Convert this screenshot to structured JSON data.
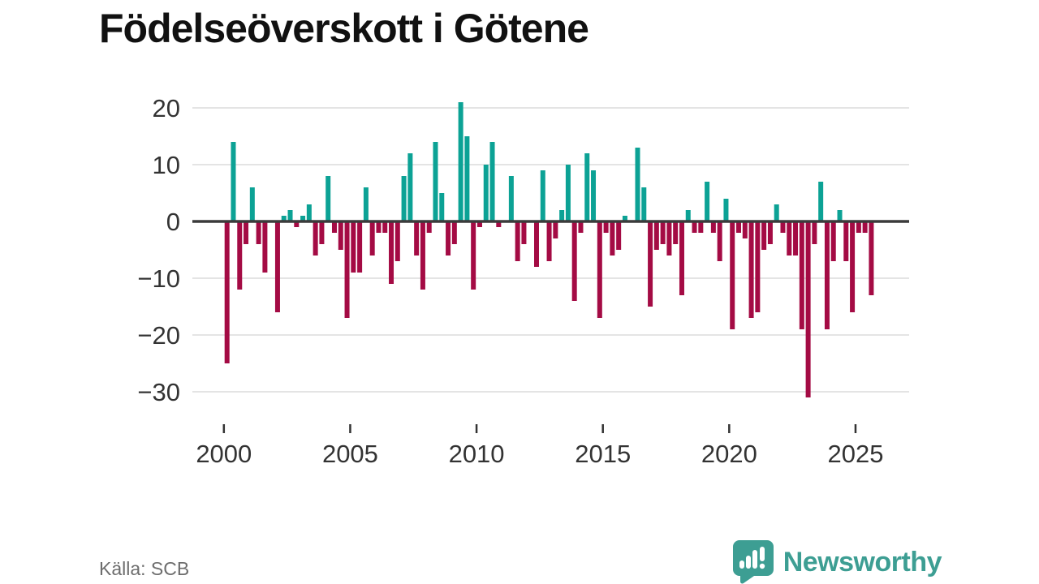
{
  "page": {
    "title": "Födelseöverskott i Götene",
    "source": "Källa: SCB",
    "brand": "Newsworthy"
  },
  "colors": {
    "positive_bar": "#0ca295",
    "negative_bar": "#a40b44",
    "zero_line": "#3b3b3b",
    "gridline": "#e4e4e4",
    "axis_text": "#333333",
    "title_text": "#111111",
    "source_text": "#6d6d6d",
    "brand_teal": "#3d9e93",
    "background": "#ffffff"
  },
  "chart_data": {
    "type": "bar",
    "title": "Födelseöverskott i Götene",
    "x_unit": "quarter",
    "start_period": "2000Q1",
    "end_period": "2025Q3",
    "values": [
      -25,
      14,
      -12,
      -4,
      6,
      -4,
      -9,
      0,
      -16,
      1,
      2,
      -1,
      1,
      3,
      -6,
      -4,
      8,
      -2,
      -5,
      -17,
      -9,
      -9,
      6,
      -6,
      -2,
      -2,
      -11,
      -7,
      8,
      12,
      -6,
      -12,
      -2,
      14,
      5,
      -6,
      -4,
      21,
      15,
      -12,
      -1,
      10,
      14,
      -1,
      0,
      8,
      -7,
      -4,
      0,
      -8,
      9,
      -7,
      -3,
      2,
      10,
      -14,
      -2,
      12,
      9,
      -17,
      -2,
      -6,
      -5,
      1,
      0,
      13,
      6,
      -15,
      -5,
      -4,
      -6,
      -4,
      -13,
      2,
      -2,
      -2,
      7,
      -2,
      -7,
      4,
      -19,
      -2,
      -3,
      -17,
      -16,
      -5,
      -4,
      3,
      -2,
      -6,
      -6,
      -19,
      -31,
      -4,
      7,
      -19,
      -7,
      2,
      -7,
      -16,
      -2,
      -2,
      -13
    ],
    "y_ticks": [
      20,
      10,
      0,
      -10,
      -20,
      -30
    ],
    "y_tick_labels": [
      "20",
      "10",
      "0",
      "−10",
      "−20",
      "−30"
    ],
    "x_tick_years": [
      2000,
      2005,
      2010,
      2015,
      2020,
      2025
    ],
    "x_tick_labels": [
      "2000",
      "2005",
      "2010",
      "2015",
      "2020",
      "2025"
    ],
    "ylim": [
      -33,
      23
    ],
    "grid": true,
    "legend": false,
    "xlabel": "",
    "ylabel": ""
  }
}
